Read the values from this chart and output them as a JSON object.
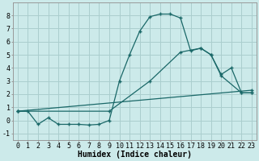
{
  "bg_color": "#cceaea",
  "grid_color": "#aacece",
  "line_color": "#1a6868",
  "line1_x": [
    0,
    1,
    2,
    3,
    4,
    5,
    6,
    7,
    8,
    9,
    10,
    11,
    12,
    13,
    14,
    15,
    16,
    17,
    18,
    19,
    20,
    21,
    22,
    23
  ],
  "line1_y": [
    0.7,
    0.7,
    -0.3,
    0.2,
    -0.3,
    -0.3,
    -0.3,
    -0.35,
    -0.3,
    0.0,
    3.0,
    5.0,
    6.8,
    7.9,
    8.1,
    8.1,
    7.8,
    5.3,
    5.5,
    5.0,
    3.5,
    4.0,
    2.1,
    2.1
  ],
  "line2_x": [
    0,
    23
  ],
  "line2_y": [
    0.7,
    2.3
  ],
  "line3_x": [
    0,
    9,
    13,
    16,
    18,
    19,
    20,
    22,
    23
  ],
  "line3_y": [
    0.7,
    0.7,
    3.0,
    5.2,
    5.5,
    5.0,
    3.4,
    2.1,
    2.1
  ],
  "xlim": [
    -0.5,
    23.5
  ],
  "ylim": [
    -1.5,
    9.0
  ],
  "xlabel": "Humidex (Indice chaleur)",
  "xticks": [
    0,
    1,
    2,
    3,
    4,
    5,
    6,
    7,
    8,
    9,
    10,
    11,
    12,
    13,
    14,
    15,
    16,
    17,
    18,
    19,
    20,
    21,
    22,
    23
  ],
  "yticks": [
    -1,
    0,
    1,
    2,
    3,
    4,
    5,
    6,
    7,
    8
  ],
  "xlabel_fontsize": 7,
  "tick_fontsize": 6,
  "marker": "+"
}
